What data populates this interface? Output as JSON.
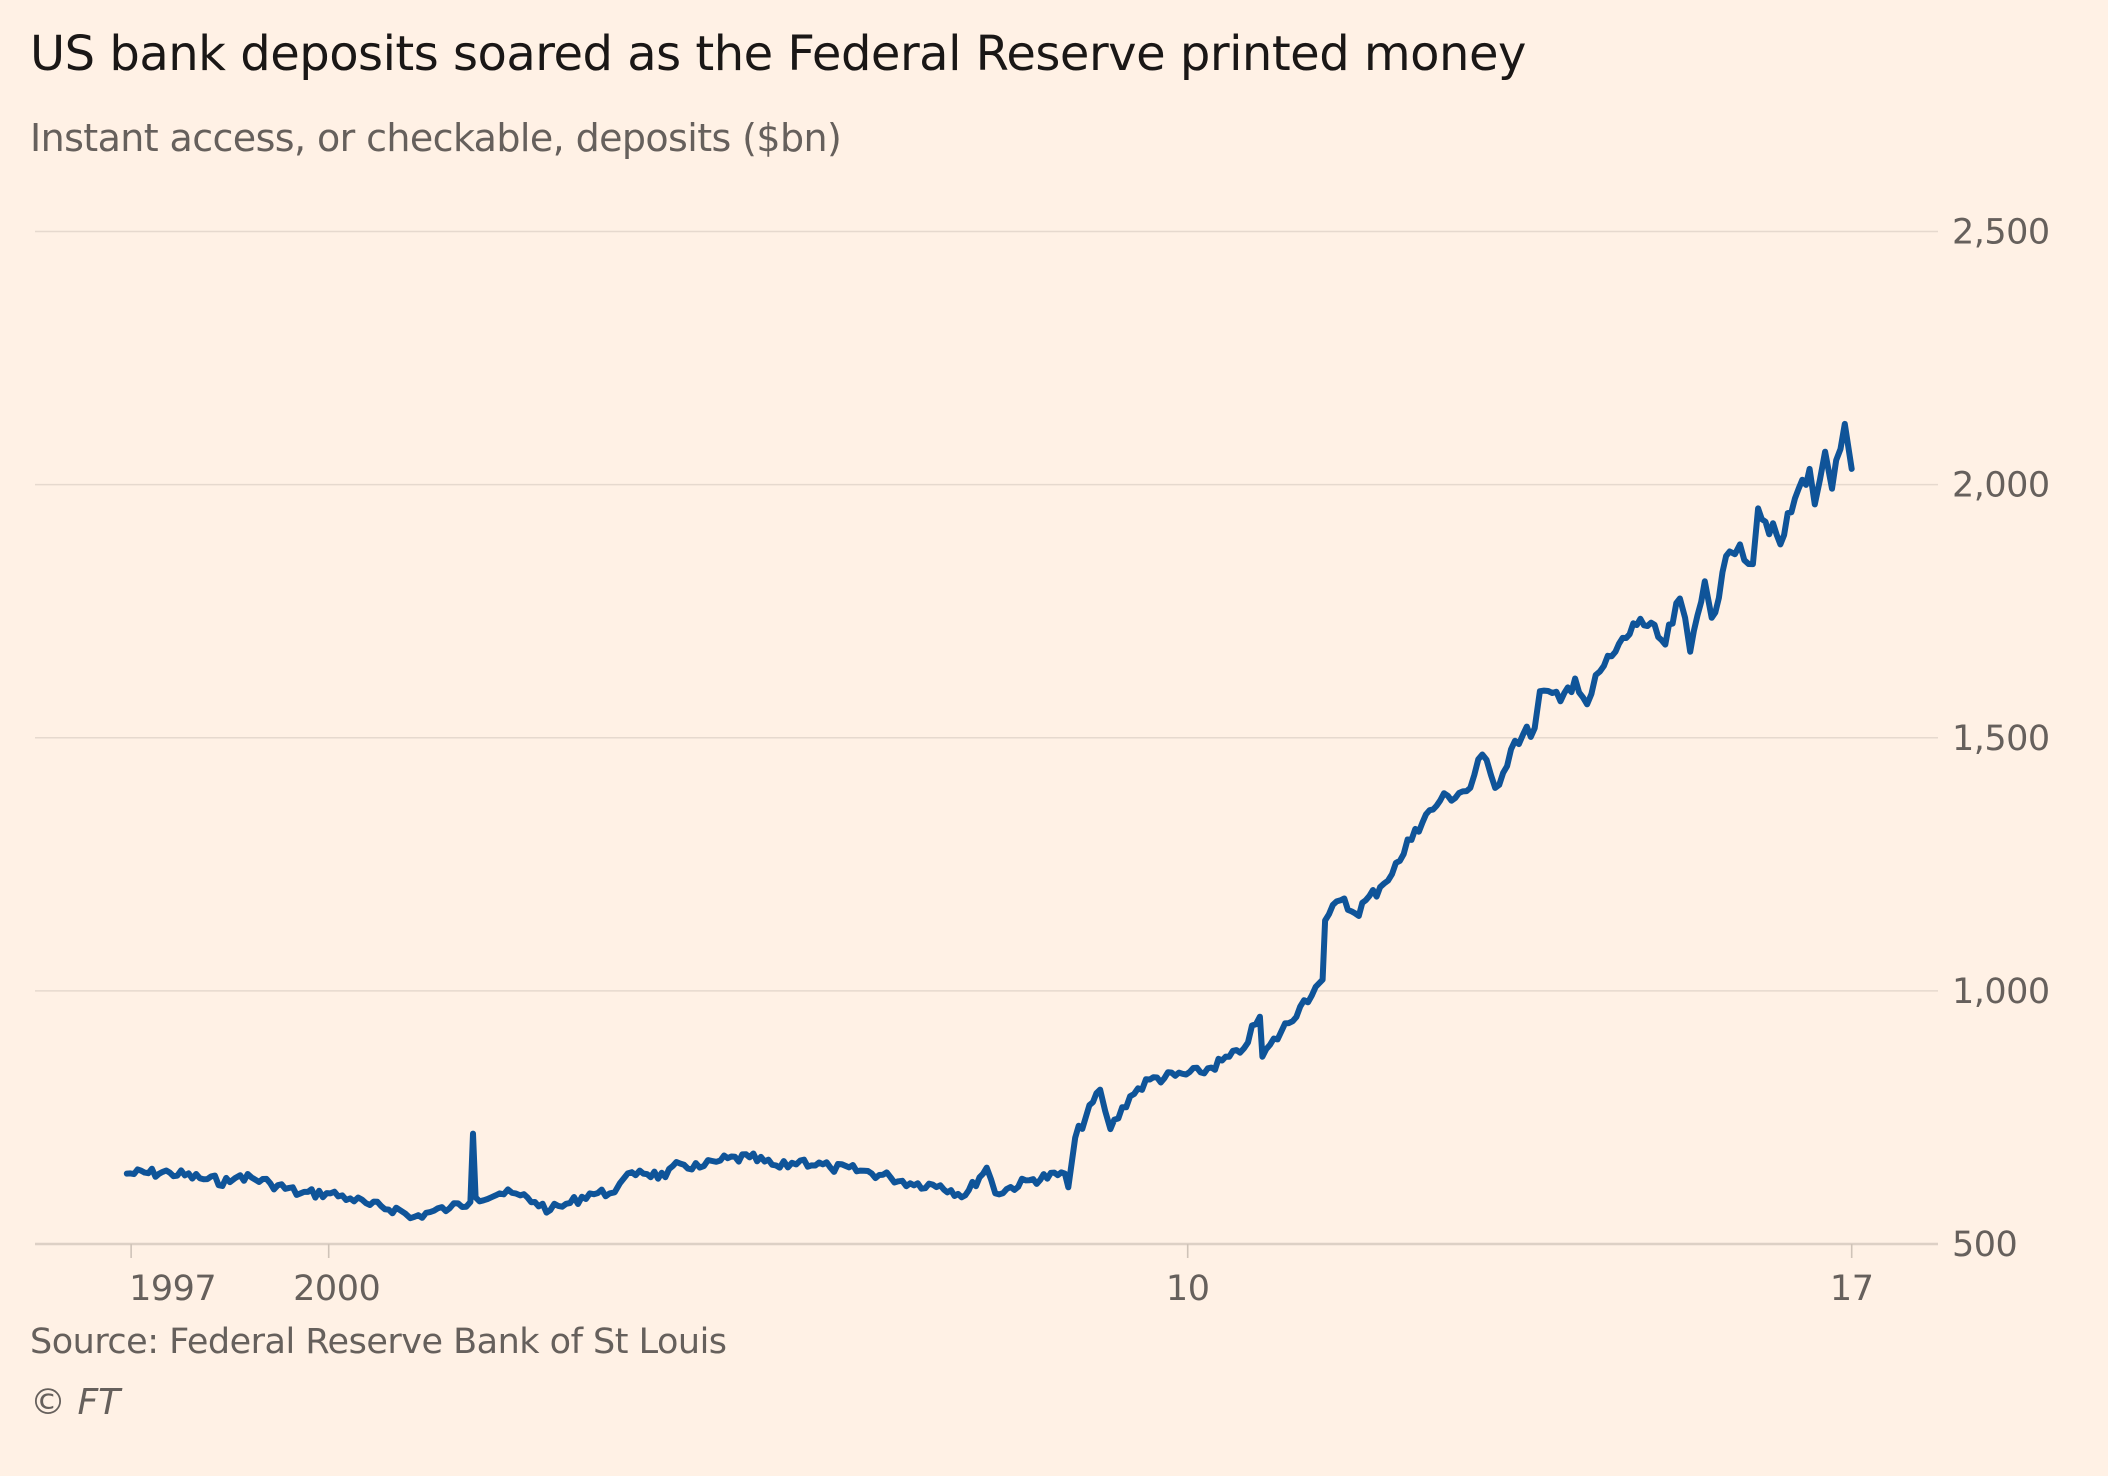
{
  "chart_data": {
    "type": "line",
    "title": "US bank deposits soared as the Federal Reserve printed money",
    "subtitle": "Instant access, or checkable, deposits ($bn)",
    "xlabel": "",
    "ylabel": "",
    "source": "Source: Federal Reserve Bank of St Louis",
    "credit": "© FT",
    "ylim": [
      500,
      2500
    ],
    "yticks": [
      500,
      1000,
      1500,
      2000,
      2500
    ],
    "ytick_labels": [
      "500",
      "1,000",
      "1,500",
      "2,000",
      "2,500"
    ],
    "xlim": [
      1997.7,
      2017.73
    ],
    "xticks": [
      1997.7,
      2000,
      2010,
      2017.73
    ],
    "xtick_labels": [
      "1997",
      "2000",
      "10",
      "17"
    ],
    "grid": true,
    "legend": "none",
    "colors": {
      "line": "#0f5499",
      "background": "#fff1e5",
      "grid": "#e6d9ce",
      "text": "#1a1716",
      "muted": "#66605c"
    },
    "series": [
      {
        "name": "Checkable deposits ($bn)",
        "x": [
          1997.65,
          1998.15,
          1998.5,
          1998.85,
          1998.97,
          1999.32,
          1999.67,
          2000.02,
          2000.25,
          2000.48,
          2000.83,
          2000.95,
          2001.18,
          2001.41,
          2001.65,
          2001.68,
          2001.71,
          2001.99,
          2002.23,
          2002.4,
          2002.58,
          2002.81,
          2003.04,
          2003.27,
          2003.39,
          2003.62,
          2003.92,
          2004.09,
          2004.32,
          2004.56,
          2004.9,
          2005.25,
          2005.49,
          2005.84,
          2006.19,
          2006.54,
          2006.77,
          2007.12,
          2007.41,
          2007.66,
          2007.76,
          2008.16,
          2008.57,
          2008.61,
          2008.69,
          2008.98,
          2009.1,
          2009.33,
          2009.56,
          2010.15,
          2010.61,
          2010.84,
          2010.87,
          2011.31,
          2011.49,
          2011.57,
          2011.6,
          2011.78,
          2011.95,
          2012.24,
          2012.47,
          2012.65,
          2012.94,
          2013.29,
          2013.43,
          2013.58,
          2013.81,
          2014.04,
          2014.1,
          2014.34,
          2014.51,
          2014.65,
          2014.8,
          2014.98,
          2015.27,
          2015.56,
          2015.73,
          2015.85,
          2016.02,
          2016.1,
          2016.31,
          2016.43,
          2016.58,
          2016.64,
          2016.9,
          2017.07,
          2017.24,
          2017.3,
          2017.42,
          2017.5,
          2017.65,
          2017.73
        ],
        "values": [
          639,
          641,
          630,
          622,
          636,
          620,
          600,
          600,
          590,
          577,
          567,
          551,
          563,
          571,
          583,
          718,
          592,
          600,
          596,
          583,
          567,
          581,
          600,
          600,
          620,
          645,
          632,
          659,
          651,
          665,
          671,
          651,
          665,
          651,
          645,
          632,
          620,
          616,
          596,
          651,
          600,
          626,
          639,
          612,
          710,
          805,
          727,
          792,
          825,
          839,
          878,
          949,
          870,
          969,
          1008,
          1022,
          1139,
          1179,
          1153,
          1205,
          1257,
          1320,
          1376,
          1401,
          1467,
          1401,
          1494,
          1519,
          1592,
          1572,
          1617,
          1566,
          1631,
          1670,
          1735,
          1684,
          1775,
          1670,
          1809,
          1737,
          1868,
          1882,
          1843,
          1953,
          1882,
          1973,
          2031,
          1961,
          2065,
          1992,
          2120,
          2031
        ]
      }
    ]
  }
}
